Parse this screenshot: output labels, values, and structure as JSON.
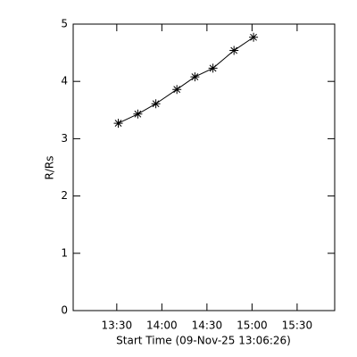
{
  "chart_data": {
    "type": "line",
    "xlabel": "Start Time (09-Nov-25 13:06:26)",
    "ylabel": "R/Rs",
    "x": [
      "13:31",
      "13:44",
      "13:56",
      "14:10",
      "14:22",
      "14:34",
      "14:48",
      "15:01"
    ],
    "series": [
      {
        "color": "#000000",
        "marker": "asterisk",
        "values": [
          3.27,
          3.43,
          3.61,
          3.86,
          4.08,
          4.23,
          4.54,
          4.77
        ]
      }
    ],
    "xlim": [
      "13:01",
      "15:55"
    ],
    "xticks": [
      "13:30",
      "14:00",
      "14:30",
      "15:00",
      "15:30"
    ],
    "ylim": [
      0,
      5
    ],
    "yticks": [
      0,
      1,
      2,
      3,
      4,
      5
    ],
    "grid": false
  }
}
